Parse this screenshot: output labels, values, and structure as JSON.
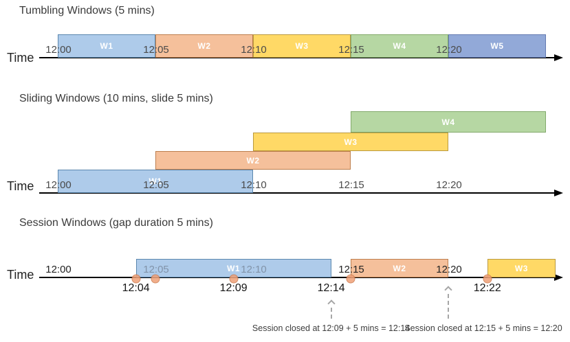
{
  "diagram": {
    "colors": {
      "blue": {
        "fill": "#AECBEA",
        "border": "#5B87AE"
      },
      "orange": {
        "fill": "#F5C09B",
        "border": "#BD7E4D"
      },
      "yellow": {
        "fill": "#FFD966",
        "border": "#BA993E"
      },
      "green": {
        "fill": "#B6D7A3",
        "border": "#81A96A"
      },
      "slate": {
        "fill": "#92A9D8",
        "border": "#6279B1"
      },
      "event_dot_fill": "#EFA077",
      "event_dot_border": "#CE7B4E",
      "annotation_arrow": "#A6A6A6",
      "tick_muted": "#8193A9"
    },
    "sections": [
      {
        "id": "tumbling",
        "title": "Tumbling Windows (5 mins)",
        "axis_label": "Time",
        "tick_color": "#4a4a4a",
        "ticks": [
          "12:00",
          "12:05",
          "12:10",
          "12:15",
          "12:20"
        ],
        "windows": [
          {
            "label": "W1",
            "start": "12:00",
            "end": "12:05",
            "color": "blue"
          },
          {
            "label": "W2",
            "start": "12:05",
            "end": "12:10",
            "color": "orange"
          },
          {
            "label": "W3",
            "start": "12:10",
            "end": "12:15",
            "color": "yellow"
          },
          {
            "label": "W4",
            "start": "12:15",
            "end": "12:20",
            "color": "green"
          },
          {
            "label": "W5",
            "start": "12:20",
            "end": "12:25",
            "color": "slate"
          }
        ]
      },
      {
        "id": "sliding",
        "title": "Sliding Windows (10 mins, slide 5 mins)",
        "axis_label": "Time",
        "tick_color": "#4a4a4a",
        "ticks": [
          "12:00",
          "12:05",
          "12:10",
          "12:15",
          "12:20"
        ],
        "windows": [
          {
            "label": "W1",
            "start": "12:00",
            "end": "12:10",
            "color": "blue",
            "row": 0
          },
          {
            "label": "W2",
            "start": "12:05",
            "end": "12:15",
            "color": "orange",
            "row": 1
          },
          {
            "label": "W3",
            "start": "12:10",
            "end": "12:20",
            "color": "yellow",
            "row": 2
          },
          {
            "label": "W4",
            "start": "12:15",
            "end": "12:25",
            "color": "green",
            "row": 3
          }
        ]
      },
      {
        "id": "session",
        "title": "Session Windows (gap duration 5 mins)",
        "axis_label": "Time",
        "tick_color": "#222222",
        "muted_ticks": [
          "12:05",
          "12:10"
        ],
        "ticks": [
          "12:00",
          "12:05",
          "12:10",
          "12:15",
          "12:20"
        ],
        "windows": [
          {
            "label": "W1",
            "start": "12:04",
            "end": "12:14",
            "color": "blue"
          },
          {
            "label": "W2",
            "start": "12:15",
            "end": "12:20",
            "color": "orange"
          },
          {
            "label": "W3",
            "start": "12:22",
            "end": "",
            "color": "yellow"
          }
        ],
        "events": [
          "12:04",
          "12:05",
          "12:09",
          "12:15",
          "12:22"
        ],
        "event_labels": [
          "12:04",
          "12:09",
          "12:14",
          "12:22"
        ],
        "annotations": [
          {
            "text": "Session closed at 12:09 + 5 mins = 12:14",
            "arrow_at": "12:14"
          },
          {
            "text": "Session closed at 12:15 + 5 mins = 12:20",
            "arrow_at": "12:20"
          }
        ]
      }
    ]
  }
}
